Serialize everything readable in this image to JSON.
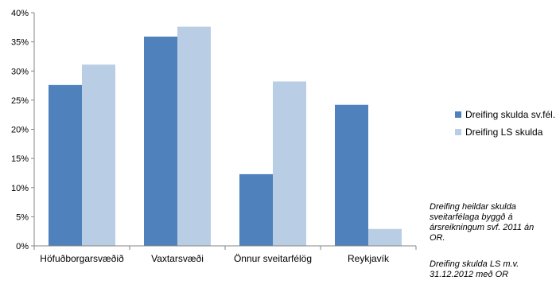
{
  "chart_data": {
    "type": "bar",
    "categories": [
      "Höfuðborgarsvæðið",
      "Vaxtarsvæði",
      "Önnur sveitarfélög",
      "Reykjavík"
    ],
    "series": [
      {
        "name": "Dreifing skulda sv.fél.",
        "values": [
          27.6,
          35.9,
          12.3,
          24.2
        ],
        "color": "#4f81bd"
      },
      {
        "name": "Dreifing LS skulda",
        "values": [
          31.1,
          37.6,
          28.2,
          2.9
        ],
        "color": "#b9cde5"
      }
    ],
    "ylim": [
      0,
      40
    ],
    "yticks": [
      "0%",
      "5%",
      "10%",
      "15%",
      "20%",
      "25%",
      "30%",
      "35%",
      "40%"
    ],
    "ytick_values": [
      0,
      5,
      10,
      15,
      20,
      25,
      30,
      35,
      40
    ],
    "grid": false,
    "legend_position": "right",
    "axis_color": "#868686"
  },
  "notes": [
    "Dreifing heildar skulda sveitarfélaga byggð á ársreikningum svf. 2011 án OR.",
    "Dreifing skulda LS m.v. 31.12.2012 með OR"
  ]
}
